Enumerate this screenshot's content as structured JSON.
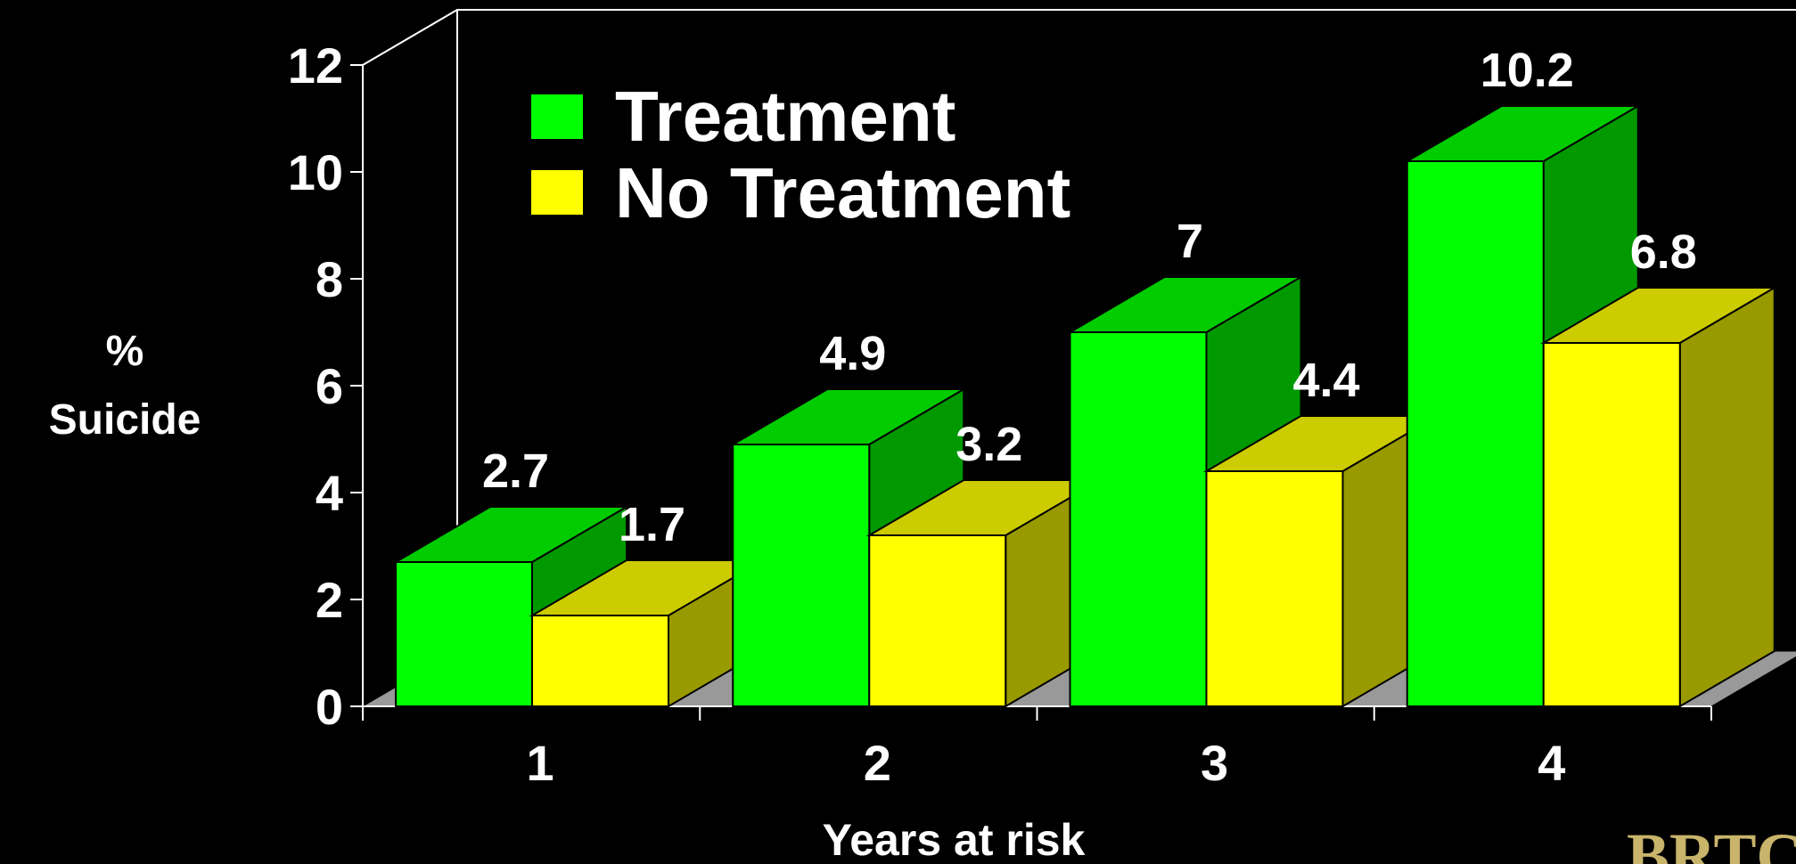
{
  "chart_data": {
    "type": "bar",
    "title": "",
    "xlabel": "Years at risk",
    "ylabel": [
      "%",
      "Suicide"
    ],
    "categories": [
      "1",
      "2",
      "3",
      "4"
    ],
    "series": [
      {
        "name": "Treatment",
        "values": [
          2.7,
          4.9,
          7,
          10.2
        ],
        "value_labels": [
          "2.7",
          "4.9",
          "7",
          "10.2"
        ],
        "color": "#00ff00",
        "top_color": "#00cc00",
        "side_color": "#009900"
      },
      {
        "name": "No Treatment",
        "values": [
          1.7,
          3.2,
          4.4,
          6.8
        ],
        "value_labels": [
          "1.7",
          "3.2",
          "4.4",
          "6.8"
        ],
        "color": "#ffff00",
        "top_color": "#cccc00",
        "side_color": "#999900"
      }
    ],
    "ylim": [
      0,
      12
    ],
    "yticks": [
      "0",
      "2",
      "4",
      "6",
      "8",
      "10",
      "12"
    ],
    "legend_position": "top-left",
    "style": "3d-clustered",
    "background": "#000000",
    "floor_color": "#999999"
  },
  "logo": {
    "text": "BRTC"
  }
}
